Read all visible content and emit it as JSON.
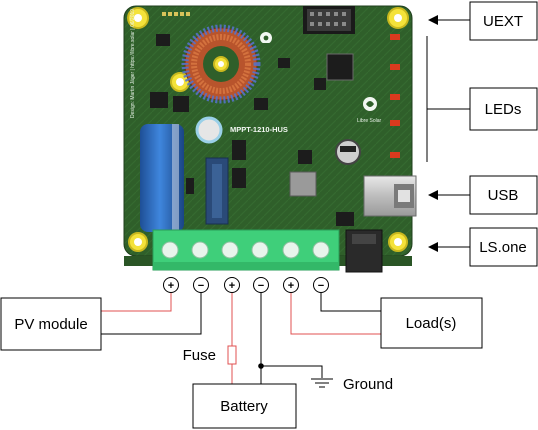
{
  "labels": {
    "uext": "UEXT",
    "leds": "LEDs",
    "usb": "USB",
    "lsone": "LS.one",
    "pv_module": "PV module",
    "loads": "Load(s)",
    "battery": "Battery",
    "fuse": "Fuse",
    "ground": "Ground"
  },
  "terminals": [
    "+",
    "−",
    "+",
    "−",
    "+",
    "−"
  ],
  "board": {
    "title": "MPPT-1210-HUS",
    "brand": "Libre Solar",
    "credit": "Design: Martin Jäger | https://libre.solar | 06/2019"
  },
  "colors": {
    "pcb": "#2f5f2a",
    "terminal_block": "#3fcf7a",
    "capacitor": "#2e6fc6",
    "wire_red": "#e05050",
    "wire_black": "#000000",
    "led": "#d93a1e",
    "mount_ring": "#f4e23a"
  }
}
